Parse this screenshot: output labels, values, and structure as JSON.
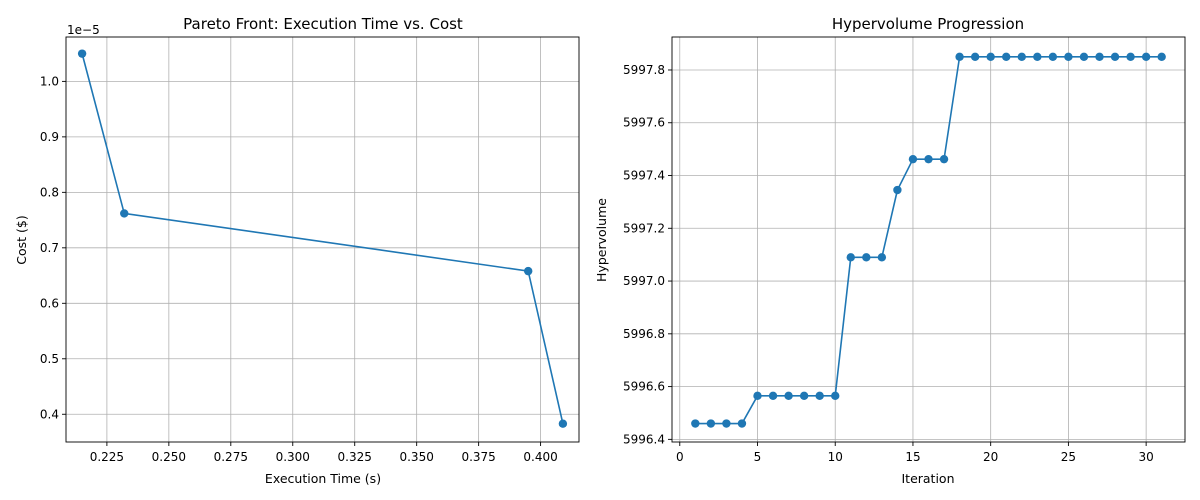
{
  "chart_data": [
    {
      "type": "line",
      "title": "Pareto Front: Execution Time vs. Cost",
      "xlabel": "Execution Time (s)",
      "ylabel": "Cost ($)",
      "y_offset_label": "1e−5",
      "x": [
        0.215,
        0.232,
        0.395,
        0.409
      ],
      "y": [
        1.05,
        0.762,
        0.658,
        0.383
      ],
      "xlim": [
        0.2085,
        0.4155
      ],
      "ylim": [
        0.35,
        1.08
      ],
      "xticks": [
        0.225,
        0.25,
        0.275,
        0.3,
        0.325,
        0.35,
        0.375,
        0.4
      ],
      "xtick_labels": [
        "0.225",
        "0.250",
        "0.275",
        "0.300",
        "0.325",
        "0.350",
        "0.375",
        "0.400"
      ],
      "yticks": [
        0.4,
        0.5,
        0.6,
        0.7,
        0.8,
        0.9,
        1.0
      ],
      "ytick_labels": [
        "0.4",
        "0.5",
        "0.6",
        "0.7",
        "0.8",
        "0.9",
        "1.0"
      ],
      "grid": true,
      "color": "#1f77b4"
    },
    {
      "type": "line",
      "title": "Hypervolume Progression",
      "xlabel": "Iteration",
      "ylabel": "Hypervolume",
      "x": [
        1,
        2,
        3,
        4,
        5,
        6,
        7,
        8,
        9,
        10,
        11,
        12,
        13,
        14,
        15,
        16,
        17,
        18,
        19,
        20,
        21,
        22,
        23,
        24,
        25,
        26,
        27,
        28,
        29,
        30,
        31
      ],
      "y": [
        5996.46,
        5996.46,
        5996.46,
        5996.46,
        5996.565,
        5996.565,
        5996.565,
        5996.565,
        5996.565,
        5996.565,
        5997.09,
        5997.09,
        5997.09,
        5997.345,
        5997.462,
        5997.462,
        5997.462,
        5997.85,
        5997.85,
        5997.85,
        5997.85,
        5997.85,
        5997.85,
        5997.85,
        5997.85,
        5997.85,
        5997.85,
        5997.85,
        5997.85,
        5997.85,
        5997.85
      ],
      "xlim": [
        -0.5,
        32.5
      ],
      "ylim": [
        5996.39,
        5997.925
      ],
      "xticks": [
        0,
        5,
        10,
        15,
        20,
        25,
        30
      ],
      "xtick_labels": [
        "0",
        "5",
        "10",
        "15",
        "20",
        "25",
        "30"
      ],
      "yticks": [
        5996.4,
        5996.6,
        5996.8,
        5997.0,
        5997.2,
        5997.4,
        5997.6,
        5997.8
      ],
      "ytick_labels": [
        "5996.4",
        "5996.6",
        "5996.8",
        "5997.0",
        "5997.2",
        "5997.4",
        "5997.6",
        "5997.8"
      ],
      "grid": true,
      "color": "#1f77b4"
    }
  ]
}
